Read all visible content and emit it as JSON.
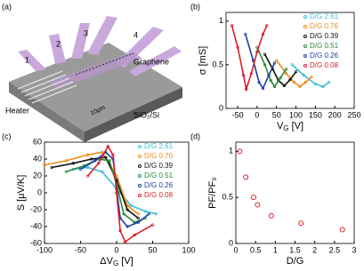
{
  "diagram": {
    "label": "(a)",
    "electrodes": [
      "1",
      "2",
      "3",
      "4"
    ],
    "graphene": "Graphene",
    "heater": "Heater",
    "substrate": "SiO₂/Si",
    "scale": "10μm"
  },
  "chart_data": [
    {
      "type": "line",
      "panel_label": "(b)",
      "ylabel": "σ [mS]",
      "xlabel": "V",
      "xlabel_sub": "G",
      "xlabel_unit": " [V]",
      "xlim": [
        -80,
        250
      ],
      "xticks": [
        -50,
        0,
        50,
        100,
        150,
        200,
        250
      ],
      "ylim": [
        0,
        1.1
      ],
      "yticks": [
        0,
        0.5,
        1
      ],
      "grid": false,
      "legend": "upper right",
      "series": [
        {
          "name": "D/G 2.61",
          "color": "#3fc0d8",
          "x": [
            90,
            120,
            150,
            170,
            185
          ],
          "values": [
            0.5,
            0.38,
            0.28,
            0.25,
            0.3
          ]
        },
        {
          "name": "D/G 0.76",
          "color": "#f08c1c",
          "x": [
            50,
            75,
            95,
            110,
            125,
            140
          ],
          "values": [
            0.55,
            0.4,
            0.3,
            0.25,
            0.3,
            0.36
          ]
        },
        {
          "name": "D/G 0.39",
          "color": "#111111",
          "x": [
            20,
            40,
            55,
            70,
            85,
            100
          ],
          "values": [
            0.62,
            0.45,
            0.32,
            0.26,
            0.33,
            0.42
          ]
        },
        {
          "name": "D/G 0.51",
          "color": "#2a8a3a",
          "x": [
            0,
            20,
            35,
            45,
            60,
            75
          ],
          "values": [
            0.7,
            0.5,
            0.32,
            0.25,
            0.35,
            0.45
          ]
        },
        {
          "name": "D/G 0.26",
          "color": "#1f3fa8",
          "x": [
            -30,
            -10,
            5,
            15,
            30,
            45
          ],
          "values": [
            0.85,
            0.55,
            0.3,
            0.23,
            0.38,
            0.52
          ]
        },
        {
          "name": "D/G 0.08",
          "color": "#d8202a",
          "x": [
            -65,
            -50,
            -35,
            -28,
            -15,
            0,
            15,
            25
          ],
          "values": [
            0.95,
            0.7,
            0.38,
            0.22,
            0.4,
            0.65,
            0.85,
            0.95
          ]
        }
      ]
    },
    {
      "type": "line",
      "panel_label": "(c)",
      "ylabel": "S [μV/K]",
      "xlabel": "ΔV",
      "xlabel_sub": "G",
      "xlabel_unit": " [V]",
      "xlim": [
        -100,
        100
      ],
      "xticks": [
        -100,
        -50,
        0,
        50,
        100
      ],
      "ylim": [
        -60,
        60
      ],
      "yticks": [
        -60,
        -40,
        -20,
        0,
        20,
        40,
        60
      ],
      "grid": false,
      "legend": "upper right",
      "series": [
        {
          "name": "D/G 2.61",
          "color": "#3fc0d8",
          "x": [
            -60,
            -40,
            -20,
            0,
            20,
            40,
            55
          ],
          "values": [
            28,
            30,
            25,
            5,
            -15,
            -22,
            -25
          ]
        },
        {
          "name": "D/G 0.76",
          "color": "#f08c1c",
          "x": [
            -100,
            -70,
            -40,
            -20,
            0,
            15,
            30
          ],
          "values": [
            33,
            38,
            45,
            48,
            20,
            -15,
            -25
          ]
        },
        {
          "name": "D/G 0.39",
          "color": "#111111",
          "x": [
            -90,
            -60,
            -35,
            -15,
            0,
            15,
            30
          ],
          "values": [
            30,
            35,
            40,
            42,
            15,
            -20,
            -30
          ]
        },
        {
          "name": "D/G 0.51",
          "color": "#2a8a3a",
          "x": [
            -70,
            -45,
            -25,
            -10,
            0,
            10,
            25,
            40
          ],
          "values": [
            25,
            32,
            40,
            38,
            10,
            -25,
            -35,
            -30
          ]
        },
        {
          "name": "D/G 0.26",
          "color": "#1f3fa8",
          "x": [
            -50,
            -30,
            -15,
            -5,
            0,
            5,
            15,
            30,
            45
          ],
          "values": [
            28,
            38,
            48,
            40,
            5,
            -30,
            -40,
            -35,
            -25
          ]
        },
        {
          "name": "D/G 0.08",
          "color": "#d8202a",
          "x": [
            -40,
            -25,
            -12,
            -5,
            0,
            5,
            12,
            25,
            50
          ],
          "values": [
            20,
            35,
            55,
            45,
            0,
            -45,
            -58,
            -50,
            -38
          ]
        }
      ]
    },
    {
      "type": "scatter",
      "panel_label": "(d)",
      "ylabel": "PF/PF₀",
      "xlabel": "D/G",
      "color": "#d8202a",
      "xlim": [
        0,
        3
      ],
      "xticks": [
        0,
        0.5,
        1,
        1.5,
        2,
        2.5,
        3
      ],
      "ylim": [
        0,
        1.1
      ],
      "yticks": [
        0,
        0.5,
        1
      ],
      "grid": false,
      "x": [
        0.1,
        0.25,
        0.45,
        0.55,
        0.9,
        1.65,
        2.7
      ],
      "values": [
        1.0,
        0.72,
        0.5,
        0.42,
        0.3,
        0.22,
        0.15
      ]
    }
  ]
}
